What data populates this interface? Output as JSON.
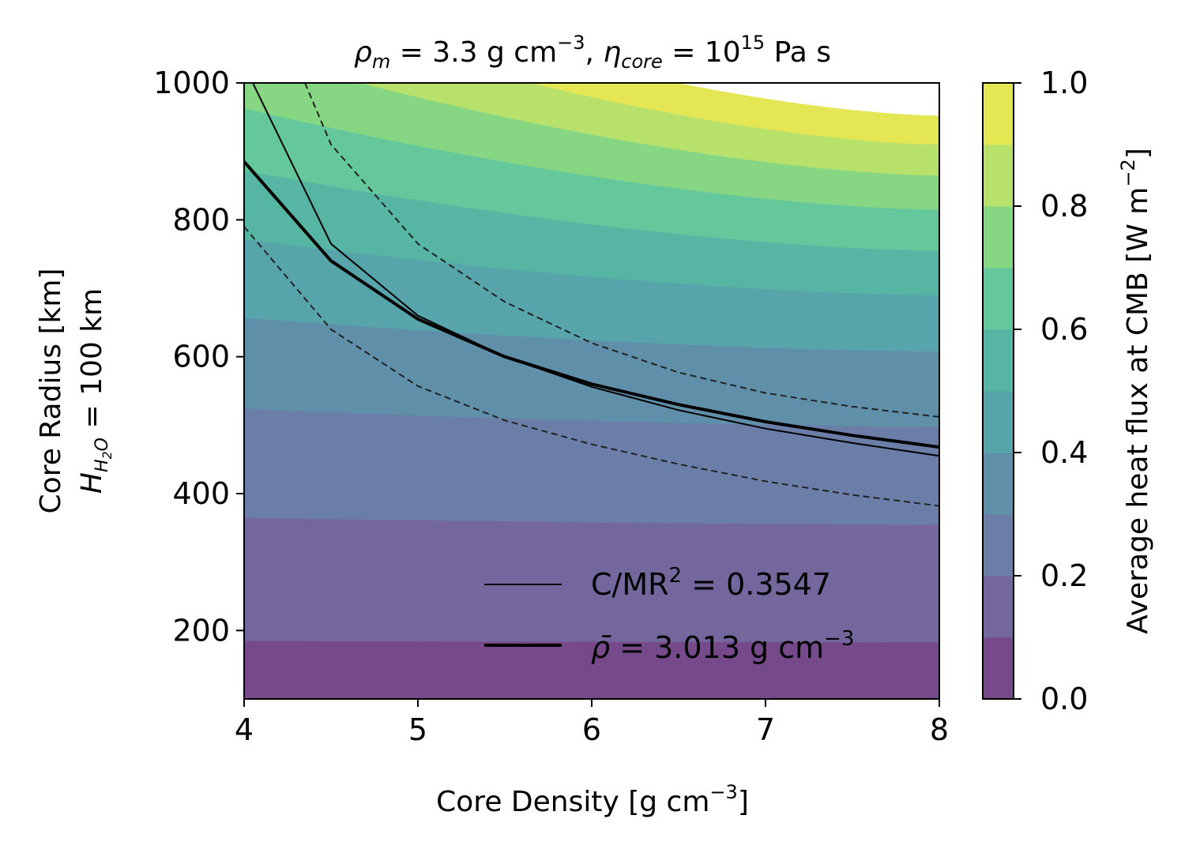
{
  "chart_data": {
    "type": "contourf",
    "title": {
      "rho": "ρ",
      "rho_sub": "m",
      "rho_val": " = 3.3 g cm",
      "rho_exp": "−3",
      "sep": ", ",
      "eta": "η",
      "eta_sub": "core",
      "eta_eq": " = 10",
      "eta_exp": "15",
      "eta_unit": " Pa s"
    },
    "xlabel": {
      "text": "Core Density [g cm",
      "exp": "−3",
      "close": "]"
    },
    "ylabel": {
      "line1_H": "H",
      "line1_sub_H": "H",
      "line1_sub_2": "2",
      "line1_sub_O": "O",
      "line1_rest": " = 100 km",
      "line2": "Core Radius [km]"
    },
    "xlim": [
      4,
      8
    ],
    "ylim": [
      100,
      1000
    ],
    "xticks": [
      "4",
      "5",
      "6",
      "7",
      "8"
    ],
    "yticks": [
      "200",
      "400",
      "600",
      "800",
      "1000"
    ],
    "colorbar": {
      "label_main": "Average heat flux at CMB [W m",
      "label_exp": "−2",
      "label_close": "]",
      "ticks": [
        "0.0",
        "0.2",
        "0.4",
        "0.6",
        "0.8",
        "1.0"
      ],
      "levels": [
        0,
        0.1,
        0.2,
        0.3,
        0.4,
        0.5,
        0.6,
        0.7,
        0.8,
        0.9,
        1.0
      ],
      "colors": [
        "#76498a",
        "#74679e",
        "#6b7ea8",
        "#5f8fa9",
        "#57a4ab",
        "#56b5a3",
        "#65c79c",
        "#87d684",
        "#b8e16c",
        "#e4e653"
      ]
    },
    "contour_boundaries": [
      {
        "level": 0.1,
        "y_at_x4": 185,
        "y_at_x8": 183
      },
      {
        "level": 0.2,
        "y_at_x4": 365,
        "y_at_x8": 355
      },
      {
        "level": 0.3,
        "y_at_x4": 524,
        "y_at_x8": 498
      },
      {
        "level": 0.4,
        "y_at_x4": 657,
        "y_at_x8": 608
      },
      {
        "level": 0.5,
        "y_at_x4": 772,
        "y_at_x8": 690
      },
      {
        "level": 0.6,
        "y_at_x4": 872,
        "y_at_x8": 755
      },
      {
        "level": 0.7,
        "y_at_x4": 963,
        "y_at_x8": 815
      },
      {
        "level": 0.8,
        "y_at_x4": 1046,
        "y_at_x8": 865
      },
      {
        "level": 0.9,
        "y_at_x4": 1121,
        "y_at_x8": 910
      },
      {
        "level": 1.0,
        "y_at_x4": 1180,
        "y_at_x8": 952
      }
    ],
    "series": [
      {
        "name": "C/MR² = 0.3547",
        "style": "thin-solid",
        "x": [
          4.05,
          4.5,
          5,
          5.5,
          6,
          6.5,
          7,
          7.5,
          8
        ],
        "y": [
          1000,
          765,
          660,
          600,
          556,
          522,
          495,
          474,
          455
        ]
      },
      {
        "name": "ρ̄ = 3.013 g cm⁻³",
        "style": "thick-solid",
        "x": [
          4,
          4.5,
          5,
          5.5,
          6,
          6.5,
          7,
          7.5,
          8
        ],
        "y": [
          885,
          740,
          655,
          600,
          560,
          530,
          505,
          485,
          468
        ]
      },
      {
        "name": "",
        "style": "dashed-upper",
        "x": [
          4.35,
          4.5,
          5,
          5.5,
          6,
          6.5,
          7,
          7.5,
          8
        ],
        "y": [
          1000,
          910,
          765,
          680,
          620,
          577,
          547,
          527,
          512
        ]
      },
      {
        "name": "",
        "style": "dashed-lower",
        "x": [
          4,
          4.5,
          5,
          5.5,
          6,
          6.5,
          7,
          7.5,
          8
        ],
        "y": [
          790,
          640,
          557,
          507,
          472,
          443,
          418,
          398,
          382
        ]
      }
    ],
    "legend": {
      "position": "lower-right",
      "entry1_text": "C/MR",
      "entry1_exp": "2",
      "entry1_rest": " = 0.3547",
      "entry2_rho": "ρ̄",
      "entry2_rest": " = 3.013 g cm",
      "entry2_exp": "−3"
    }
  }
}
